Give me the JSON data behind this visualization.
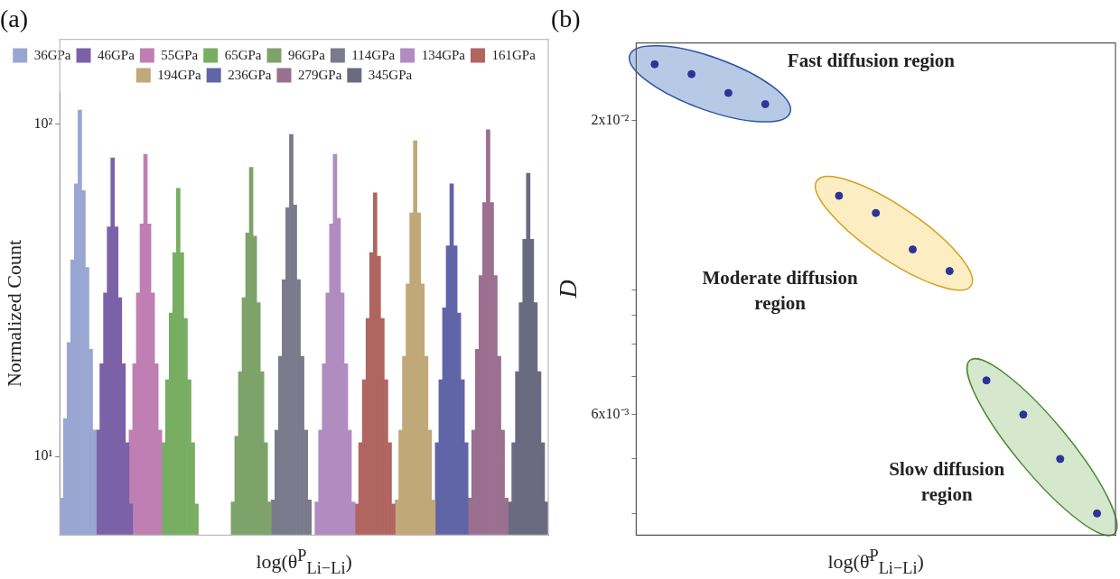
{
  "chart_data": [
    {
      "type": "bar",
      "title": "(a)",
      "xlabel": "log(θ$^{P}$$_{Li−Li}$)",
      "ylabel": "Normalized Count",
      "log": true,
      "ylim": [
        5.8,
        125
      ],
      "yticks": [
        {
          "value": 10,
          "label": "10¹"
        },
        {
          "value": 100,
          "label": "10²"
        }
      ],
      "tick_labels": "y",
      "legend": "top",
      "categories": [
        null,
        null,
        null,
        null,
        null,
        null,
        null,
        null,
        null,
        null,
        null,
        null,
        null,
        null,
        null,
        null,
        null,
        null,
        null,
        null,
        null,
        null,
        null,
        null,
        null,
        null,
        null,
        null,
        null,
        null,
        null,
        null,
        null,
        null,
        null,
        null,
        null,
        null,
        null,
        null,
        null,
        null,
        null,
        null,
        null,
        null,
        null,
        null,
        null,
        null,
        null,
        null,
        null,
        null,
        null,
        null,
        null,
        null,
        null,
        null,
        null,
        null,
        null,
        null,
        null,
        null,
        null,
        null,
        null,
        null,
        null,
        null,
        null,
        null,
        null,
        null,
        null,
        null,
        null,
        null,
        null,
        null,
        null,
        null,
        null,
        null,
        null,
        null,
        null,
        null,
        null,
        null,
        null,
        null,
        null,
        null,
        null,
        null,
        null,
        null,
        null,
        null,
        null,
        null,
        null,
        null,
        null,
        null,
        null,
        null,
        null,
        null,
        null,
        null,
        null,
        null,
        null,
        null,
        null,
        null,
        null,
        null,
        null,
        null,
        null,
        null,
        null,
        null,
        null,
        null,
        null,
        null,
        null,
        null
      ],
      "series": [
        {
          "name": "36GPa",
          "color": "#9aa6d2",
          "values": [
            7.5,
            13,
            22,
            39,
            66,
            110,
            63,
            37,
            21,
            12,
            null,
            null,
            null,
            null,
            null,
            null,
            null,
            null,
            null,
            null,
            null,
            null,
            null,
            null,
            null,
            null,
            null,
            null,
            null,
            null,
            null,
            null,
            null,
            null,
            null,
            null,
            null,
            null,
            null,
            null,
            null,
            null,
            null,
            null,
            null,
            null,
            null,
            null,
            null,
            null,
            null,
            null,
            null,
            null,
            null,
            null,
            null,
            null,
            null,
            null,
            null,
            null,
            null,
            null,
            null,
            null,
            null,
            null,
            null,
            null,
            null,
            null,
            null,
            null,
            null,
            null,
            null,
            null,
            null,
            null,
            null,
            null,
            null,
            null,
            null,
            null,
            null,
            null,
            null,
            null,
            null,
            null,
            null,
            null,
            null,
            null,
            null,
            null,
            null,
            null,
            null,
            null,
            null,
            null,
            null,
            null,
            null,
            null,
            null,
            null,
            null,
            null,
            null,
            null,
            null,
            null,
            null,
            null,
            null,
            null,
            null,
            null,
            null,
            null,
            null,
            null,
            null,
            null,
            null,
            null,
            null,
            null,
            null,
            null
          ]
        },
        {
          "name": "46GPa",
          "color": "#7b62a8",
          "values": [
            null,
            null,
            null,
            null,
            null,
            null,
            null,
            null,
            null,
            null,
            12,
            19,
            31,
            49,
            79,
            49,
            30,
            19,
            11,
            7.2,
            null,
            null,
            null,
            null,
            null,
            null,
            null,
            null,
            null,
            null,
            null,
            null,
            null,
            null,
            null,
            null,
            null,
            null,
            null,
            null,
            null,
            null,
            null,
            null,
            null,
            null,
            null,
            null,
            null,
            null,
            null,
            null,
            null,
            null,
            null,
            null,
            null,
            null,
            null,
            null,
            null,
            null,
            null,
            null,
            null,
            null,
            null,
            null,
            null,
            null,
            null,
            null,
            null,
            null,
            null,
            null,
            null,
            null,
            null,
            null,
            null,
            null,
            null,
            null,
            null,
            null,
            null,
            null,
            null,
            null,
            null,
            null,
            null,
            null,
            null,
            null,
            null,
            null,
            null,
            null,
            null,
            null,
            null,
            null,
            null,
            null,
            null,
            null,
            null,
            null,
            null,
            null,
            null,
            null,
            null,
            null,
            null,
            null,
            null,
            null,
            null,
            null,
            null,
            null,
            null,
            null,
            null,
            null,
            null,
            null,
            null,
            null,
            null,
            null
          ]
        },
        {
          "name": "55GPa",
          "color": "#c07fb3",
          "values": [
            null,
            null,
            null,
            null,
            null,
            null,
            null,
            null,
            null,
            null,
            null,
            null,
            null,
            null,
            null,
            null,
            null,
            null,
            null,
            12,
            19,
            31,
            50,
            81,
            50,
            31,
            19,
            12,
            null,
            null,
            null,
            null,
            null,
            null,
            null,
            null,
            null,
            null,
            null,
            null,
            null,
            null,
            null,
            null,
            null,
            null,
            null,
            null,
            null,
            null,
            null,
            null,
            null,
            null,
            null,
            null,
            null,
            null,
            null,
            null,
            null,
            null,
            null,
            null,
            null,
            null,
            null,
            null,
            null,
            null,
            null,
            null,
            null,
            null,
            null,
            null,
            null,
            null,
            null,
            null,
            null,
            null,
            null,
            null,
            null,
            null,
            null,
            null,
            null,
            null,
            null,
            null,
            null,
            null,
            null,
            null,
            null,
            null,
            null,
            null,
            null,
            null,
            null,
            null,
            null,
            null,
            null,
            null,
            null,
            null,
            null,
            null,
            null,
            null,
            null,
            null,
            null,
            null,
            null,
            null,
            null,
            null,
            null,
            null,
            null,
            null,
            null,
            null,
            null,
            null,
            null,
            null,
            null,
            null
          ]
        },
        {
          "name": "65GPa",
          "color": "#77ae62",
          "values": [
            null,
            null,
            null,
            null,
            null,
            null,
            null,
            null,
            null,
            null,
            null,
            null,
            null,
            null,
            null,
            null,
            null,
            null,
            null,
            null,
            null,
            null,
            null,
            null,
            null,
            null,
            null,
            null,
            11,
            17,
            27,
            41,
            64,
            41,
            26,
            17,
            11,
            7.2,
            null,
            null,
            null,
            null,
            null,
            null,
            null,
            null,
            null,
            null,
            null,
            null,
            null,
            null,
            null,
            null,
            null,
            null,
            null,
            null,
            null,
            null,
            null,
            null,
            null,
            null,
            null,
            null,
            null,
            null,
            null,
            null,
            null,
            null,
            null,
            null,
            null,
            null,
            null,
            null,
            null,
            null,
            null,
            null,
            null,
            null,
            null,
            null,
            null,
            null,
            null,
            null,
            null,
            null,
            null,
            null,
            null,
            null,
            null,
            null,
            null,
            null,
            null,
            null,
            null,
            null,
            null,
            null,
            null,
            null,
            null,
            null,
            null,
            null,
            null,
            null,
            null,
            null,
            null,
            null,
            null,
            null,
            null,
            null,
            null,
            null,
            null,
            null,
            null,
            null,
            null,
            null,
            null,
            null,
            null,
            null
          ]
        },
        {
          "name": "96GPa",
          "color": "#7ea36a",
          "values": [
            null,
            null,
            null,
            null,
            null,
            null,
            null,
            null,
            null,
            null,
            null,
            null,
            null,
            null,
            null,
            null,
            null,
            null,
            null,
            null,
            null,
            null,
            null,
            null,
            null,
            null,
            null,
            null,
            null,
            null,
            null,
            null,
            null,
            null,
            null,
            null,
            null,
            null,
            null,
            null,
            null,
            null,
            null,
            null,
            null,
            null,
            null,
            7.3,
            11.5,
            18,
            30,
            47,
            74,
            46,
            29,
            18,
            11,
            7.3,
            null,
            null,
            null,
            null,
            null,
            null,
            null,
            null,
            null,
            null,
            null,
            null,
            null,
            null,
            null,
            null,
            null,
            null,
            null,
            null,
            null,
            null,
            null,
            null,
            null,
            null,
            null,
            null,
            null,
            null,
            null,
            null,
            null,
            null,
            null,
            null,
            null,
            null,
            null,
            null,
            null,
            null,
            null,
            null,
            null,
            null,
            null,
            null,
            null,
            null,
            null,
            null,
            null,
            null,
            null,
            null,
            null,
            null,
            null,
            null,
            null,
            null,
            null,
            null,
            null,
            null,
            null,
            null,
            null,
            null,
            null,
            null,
            null,
            null,
            null,
            null
          ]
        },
        {
          "name": "114GPa",
          "color": "#7a7a8c",
          "values": [
            null,
            null,
            null,
            null,
            null,
            null,
            null,
            null,
            null,
            null,
            null,
            null,
            null,
            null,
            null,
            null,
            null,
            null,
            null,
            null,
            null,
            null,
            null,
            null,
            null,
            null,
            null,
            null,
            null,
            null,
            null,
            null,
            null,
            null,
            null,
            null,
            null,
            null,
            null,
            null,
            null,
            null,
            null,
            null,
            null,
            null,
            null,
            null,
            null,
            null,
            null,
            null,
            null,
            null,
            null,
            null,
            null,
            null,
            7.4,
            12,
            20,
            34,
            56,
            93,
            57,
            34,
            20,
            12,
            7.4,
            null,
            null,
            null,
            null,
            null,
            null,
            null,
            null,
            null,
            null,
            null,
            null,
            null,
            null,
            null,
            null,
            null,
            null,
            null,
            null,
            null,
            null,
            null,
            null,
            null,
            null,
            null,
            null,
            null,
            null,
            null,
            null,
            null,
            null,
            null,
            null,
            null,
            null,
            null,
            null,
            null,
            null,
            null,
            null,
            null,
            null,
            null,
            null,
            null,
            null,
            null,
            null,
            null,
            null,
            null,
            null,
            null,
            null,
            null,
            null,
            null,
            null,
            null,
            null,
            null
          ]
        },
        {
          "name": "134GPa",
          "color": "#b08cc0",
          "values": [
            null,
            null,
            null,
            null,
            null,
            null,
            null,
            null,
            null,
            null,
            null,
            null,
            null,
            null,
            null,
            null,
            null,
            null,
            null,
            null,
            null,
            null,
            null,
            null,
            null,
            null,
            null,
            null,
            null,
            null,
            null,
            null,
            null,
            null,
            null,
            null,
            null,
            null,
            null,
            null,
            null,
            null,
            null,
            null,
            null,
            null,
            null,
            null,
            null,
            null,
            null,
            null,
            null,
            null,
            null,
            null,
            null,
            null,
            null,
            null,
            null,
            null,
            null,
            null,
            null,
            null,
            null,
            null,
            null,
            null,
            7.3,
            12,
            19,
            31,
            50,
            81,
            52,
            31,
            19,
            12,
            7.3,
            null,
            null,
            null,
            null,
            null,
            null,
            null,
            null,
            null,
            null,
            null,
            null,
            null,
            null,
            null,
            null,
            null,
            null,
            null,
            null,
            null,
            null,
            null,
            null,
            null,
            null,
            null,
            null,
            null,
            null,
            null,
            null,
            null,
            null,
            null,
            null,
            null,
            null,
            null,
            null,
            null,
            null,
            null,
            null,
            null,
            null,
            null,
            null,
            null,
            null,
            null,
            null,
            null
          ]
        },
        {
          "name": "161GPa",
          "color": "#b06560",
          "values": [
            null,
            null,
            null,
            null,
            null,
            null,
            null,
            null,
            null,
            null,
            null,
            null,
            null,
            null,
            null,
            null,
            null,
            null,
            null,
            null,
            null,
            null,
            null,
            null,
            null,
            null,
            null,
            null,
            null,
            null,
            null,
            null,
            null,
            null,
            null,
            null,
            null,
            null,
            null,
            null,
            null,
            null,
            null,
            null,
            null,
            null,
            null,
            null,
            null,
            null,
            null,
            null,
            null,
            null,
            null,
            null,
            null,
            null,
            null,
            null,
            null,
            null,
            null,
            null,
            null,
            null,
            null,
            null,
            null,
            null,
            null,
            null,
            null,
            null,
            null,
            null,
            null,
            null,
            null,
            null,
            null,
            7.2,
            11,
            17,
            26,
            41,
            62,
            40,
            26,
            17,
            11,
            7.2,
            null,
            null,
            null,
            null,
            null,
            null,
            null,
            null,
            null,
            null,
            null,
            null,
            null,
            null,
            null,
            null,
            null,
            null,
            null,
            null,
            null,
            null,
            null,
            null,
            null,
            null,
            null,
            null,
            null,
            null,
            null,
            null,
            null,
            null,
            null,
            null,
            null,
            null,
            null,
            null,
            null,
            null
          ]
        },
        {
          "name": "194GPa",
          "color": "#c0a878",
          "values": [
            null,
            null,
            null,
            null,
            null,
            null,
            null,
            null,
            null,
            null,
            null,
            null,
            null,
            null,
            null,
            null,
            null,
            null,
            null,
            null,
            null,
            null,
            null,
            null,
            null,
            null,
            null,
            null,
            null,
            null,
            null,
            null,
            null,
            null,
            null,
            null,
            null,
            null,
            null,
            null,
            null,
            null,
            null,
            null,
            null,
            null,
            null,
            null,
            null,
            null,
            null,
            null,
            null,
            null,
            null,
            null,
            null,
            null,
            null,
            null,
            null,
            null,
            null,
            null,
            null,
            null,
            null,
            null,
            null,
            null,
            null,
            null,
            null,
            null,
            null,
            null,
            null,
            null,
            null,
            null,
            null,
            null,
            null,
            null,
            null,
            null,
            null,
            null,
            null,
            null,
            null,
            null,
            7.4,
            12,
            20,
            33,
            54,
            89,
            54,
            33,
            20,
            12,
            7.4,
            null,
            null,
            null,
            null,
            null,
            null,
            null,
            null,
            null,
            null,
            null,
            null,
            null,
            null,
            null,
            null,
            null,
            null,
            null,
            null,
            null,
            null,
            null,
            null,
            null,
            null,
            null,
            null,
            null,
            null,
            null
          ]
        },
        {
          "name": "236GPa",
          "color": "#6065a8",
          "values": [
            null,
            null,
            null,
            null,
            null,
            null,
            null,
            null,
            null,
            null,
            null,
            null,
            null,
            null,
            null,
            null,
            null,
            null,
            null,
            null,
            null,
            null,
            null,
            null,
            null,
            null,
            null,
            null,
            null,
            null,
            null,
            null,
            null,
            null,
            null,
            null,
            null,
            null,
            null,
            null,
            null,
            null,
            null,
            null,
            null,
            null,
            null,
            null,
            null,
            null,
            null,
            null,
            null,
            null,
            null,
            null,
            null,
            null,
            null,
            null,
            null,
            null,
            null,
            null,
            null,
            null,
            null,
            null,
            null,
            null,
            null,
            null,
            null,
            null,
            null,
            null,
            null,
            null,
            null,
            null,
            null,
            null,
            null,
            null,
            null,
            null,
            null,
            null,
            null,
            null,
            null,
            null,
            null,
            null,
            null,
            null,
            null,
            null,
            null,
            null,
            null,
            null,
            null,
            11,
            17,
            28,
            43,
            66,
            43,
            27,
            17,
            11,
            null,
            null,
            null,
            null,
            null,
            null,
            null,
            null,
            null,
            null,
            null,
            null,
            null,
            null,
            null,
            null,
            null,
            null,
            null,
            null,
            null,
            null
          ]
        },
        {
          "name": "279GPa",
          "color": "#9a6f90",
          "values": [
            null,
            null,
            null,
            null,
            null,
            null,
            null,
            null,
            null,
            null,
            null,
            null,
            null,
            null,
            null,
            null,
            null,
            null,
            null,
            null,
            null,
            null,
            null,
            null,
            null,
            null,
            null,
            null,
            null,
            null,
            null,
            null,
            null,
            null,
            null,
            null,
            null,
            null,
            null,
            null,
            null,
            null,
            null,
            null,
            null,
            null,
            null,
            null,
            null,
            null,
            null,
            null,
            null,
            null,
            null,
            null,
            null,
            null,
            null,
            null,
            null,
            null,
            null,
            null,
            null,
            null,
            null,
            null,
            null,
            null,
            null,
            null,
            null,
            null,
            null,
            null,
            null,
            null,
            null,
            null,
            null,
            null,
            null,
            null,
            null,
            null,
            null,
            null,
            null,
            null,
            null,
            null,
            null,
            null,
            null,
            null,
            null,
            null,
            null,
            null,
            null,
            null,
            null,
            null,
            null,
            null,
            null,
            null,
            null,
            null,
            null,
            null,
            7.5,
            12,
            21,
            35,
            58,
            96,
            58,
            35,
            20,
            12,
            7.5,
            null,
            null,
            null,
            null,
            null,
            null,
            null,
            null,
            null,
            null,
            null
          ]
        },
        {
          "name": "345GPa",
          "color": "#6a6a80",
          "values": [
            null,
            null,
            null,
            null,
            null,
            null,
            null,
            null,
            null,
            null,
            null,
            null,
            null,
            null,
            null,
            null,
            null,
            null,
            null,
            null,
            null,
            null,
            null,
            null,
            null,
            null,
            null,
            null,
            null,
            null,
            null,
            null,
            null,
            null,
            null,
            null,
            null,
            null,
            null,
            null,
            null,
            null,
            null,
            null,
            null,
            null,
            null,
            null,
            null,
            null,
            null,
            null,
            null,
            null,
            null,
            null,
            null,
            null,
            null,
            null,
            null,
            null,
            null,
            null,
            null,
            null,
            null,
            null,
            null,
            null,
            null,
            null,
            null,
            null,
            null,
            null,
            null,
            null,
            null,
            null,
            null,
            null,
            null,
            null,
            null,
            null,
            null,
            null,
            null,
            null,
            null,
            null,
            null,
            null,
            null,
            null,
            null,
            null,
            null,
            null,
            null,
            null,
            null,
            null,
            null,
            null,
            null,
            null,
            null,
            null,
            null,
            null,
            null,
            null,
            null,
            null,
            null,
            null,
            null,
            null,
            null,
            null,
            null,
            7.3,
            11,
            18,
            29,
            45,
            71,
            45,
            29,
            18,
            11,
            7.3
          ]
        }
      ]
    },
    {
      "type": "scatter",
      "title": "(b)",
      "xlabel": "log(θ̄$^{P}$$_{Li−Li}$)",
      "ylabel": "D",
      "log": true,
      "ylim": [
        0.00366,
        0.0275
      ],
      "yticks": [
        {
          "value": 0.02,
          "label": "2x10⁻²"
        },
        {
          "value": 0.01,
          "label": null
        },
        {
          "value": 0.009,
          "label": null
        },
        {
          "value": 0.008,
          "label": null
        },
        {
          "value": 0.007,
          "label": null
        },
        {
          "value": 0.006,
          "label": "6x10⁻³"
        },
        {
          "value": 0.005,
          "label": null
        },
        {
          "value": 0.004,
          "label": null
        }
      ],
      "tick_labels": "y",
      "marker": "circle",
      "categories": [
        null,
        null,
        null,
        null,
        null,
        null,
        null,
        null,
        null,
        null,
        null,
        null,
        null
      ],
      "series": [
        {
          "color": "#2b3595",
          "values": [
            0.0252,
            0.0242,
            0.0224,
            0.0214,
            null,
            0.0147,
            0.0137,
            0.0118,
            0.0108,
            0.0069,
            0.006,
            0.005,
            0.004
          ]
        }
      ],
      "annotations": [
        "Fast diffusion region",
        "Moderate diffusion region",
        "Slow diffusion region"
      ]
    }
  ]
}
